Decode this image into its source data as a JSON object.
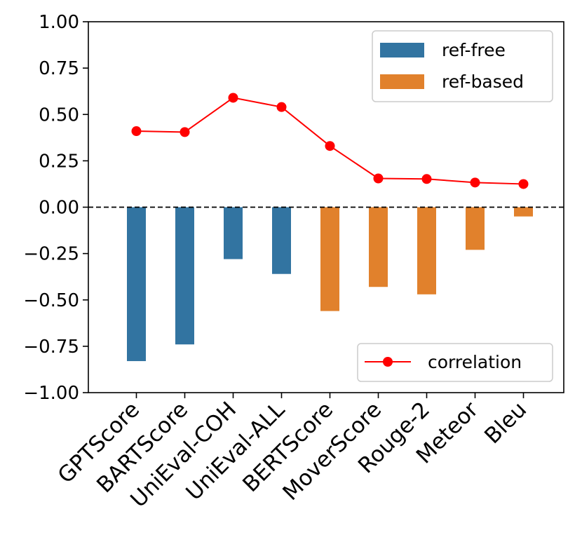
{
  "chart_data": {
    "type": "bar",
    "categories": [
      "GPTScore",
      "BARTScore",
      "UniEval-COH",
      "UniEval-ALL",
      "BERTScore",
      "MoverScore",
      "Rouge-2",
      "Meteor",
      "Bleu"
    ],
    "bar_values": [
      -0.83,
      -0.74,
      -0.28,
      -0.36,
      -0.56,
      -0.43,
      -0.47,
      -0.23,
      -0.05
    ],
    "bar_groups": [
      "ref-free",
      "ref-free",
      "ref-free",
      "ref-free",
      "ref-based",
      "ref-based",
      "ref-based",
      "ref-based",
      "ref-based"
    ],
    "series": [
      {
        "name": "correlation",
        "type": "line",
        "values": [
          0.41,
          0.405,
          0.59,
          0.54,
          0.33,
          0.155,
          0.152,
          0.133,
          0.125
        ]
      }
    ],
    "ylim": [
      -1.0,
      1.0
    ],
    "yticks": [
      1.0,
      0.75,
      0.5,
      0.25,
      0.0,
      -0.25,
      -0.5,
      -0.75,
      -1.0
    ],
    "ytick_labels": [
      "1.00",
      "0.75",
      "0.50",
      "0.25",
      "0.00",
      "−0.25",
      "−0.50",
      "−0.75",
      "−1.00"
    ],
    "zero_line": true,
    "title": "",
    "xlabel": "",
    "ylabel": "",
    "legend_bars": {
      "placement": "top-right",
      "items": [
        {
          "label": "ref-free",
          "color": "#3274a1"
        },
        {
          "label": "ref-based",
          "color": "#e1812c"
        }
      ]
    },
    "legend_line": {
      "placement": "bottom-right",
      "items": [
        {
          "label": "correlation",
          "color": "#ff0000"
        }
      ]
    }
  }
}
